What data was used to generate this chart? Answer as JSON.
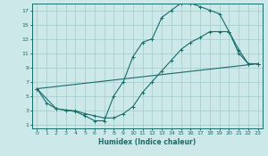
{
  "title": "",
  "xlabel": "Humidex (Indice chaleur)",
  "xlim": [
    -0.5,
    23.5
  ],
  "ylim": [
    0.5,
    18
  ],
  "xticks": [
    0,
    1,
    2,
    3,
    4,
    5,
    6,
    7,
    8,
    9,
    10,
    11,
    12,
    13,
    14,
    15,
    16,
    17,
    18,
    19,
    20,
    21,
    22,
    23
  ],
  "yticks": [
    1,
    3,
    5,
    7,
    9,
    11,
    13,
    15,
    17
  ],
  "bg_color": "#cce8e8",
  "grid_color": "#aacece",
  "line_color": "#1a6b6b",
  "line1_x": [
    0,
    1,
    2,
    3,
    4,
    5,
    6,
    7,
    8,
    9,
    10,
    11,
    12,
    13,
    14,
    15,
    16,
    17,
    18,
    19,
    20,
    21,
    22,
    23
  ],
  "line1_y": [
    6,
    4,
    3.2,
    3,
    2.8,
    2.2,
    1.5,
    1.5,
    5,
    7,
    10.5,
    12.5,
    13,
    16,
    17,
    18,
    18,
    17.5,
    17,
    16.5,
    14,
    11,
    9.5,
    9.5
  ],
  "line2_x": [
    0,
    2,
    3,
    4,
    5,
    6,
    7,
    8,
    9,
    10,
    11,
    12,
    13,
    14,
    15,
    16,
    17,
    18,
    19,
    20,
    21,
    22,
    23
  ],
  "line2_y": [
    6,
    3.2,
    3,
    2.9,
    2.5,
    2.2,
    1.9,
    1.9,
    2.5,
    3.5,
    5.5,
    7,
    8.5,
    10,
    11.5,
    12.5,
    13.2,
    14,
    14,
    14,
    11.5,
    9.5,
    9.5
  ],
  "line3_x": [
    0,
    23
  ],
  "line3_y": [
    6,
    9.5
  ]
}
